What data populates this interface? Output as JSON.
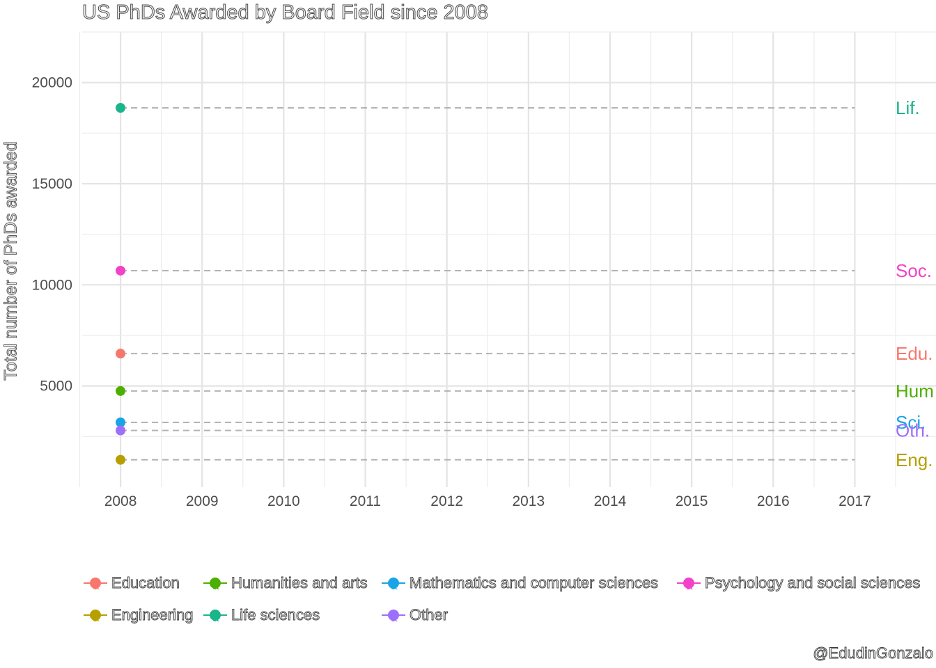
{
  "chart_data": {
    "type": "line",
    "title": "US PhDs Awarded by Board Field since 2008",
    "ylabel": "Total number of PhDs awarded",
    "xlabel": "",
    "x_ticks": [
      2008,
      2009,
      2010,
      2011,
      2012,
      2013,
      2014,
      2015,
      2016,
      2017
    ],
    "y_ticks": [
      5000,
      10000,
      15000,
      20000
    ],
    "xlim": [
      2007.53,
      2017.5
    ],
    "ylim": [
      0,
      22500
    ],
    "grid": true,
    "legend_position": "bottom",
    "caption": "@EdudinGonzalo",
    "series": [
      {
        "name": "Education",
        "short": "Edu.",
        "color": "#F8766D",
        "x": [
          2008
        ],
        "y": [
          6600
        ]
      },
      {
        "name": "Engineering",
        "short": "Eng.",
        "color": "#B79F00",
        "x": [
          2008
        ],
        "y": [
          1350
        ]
      },
      {
        "name": "Humanities and arts",
        "short": "Hum",
        "color": "#4DAF02",
        "x": [
          2008
        ],
        "y": [
          4750
        ]
      },
      {
        "name": "Life sciences",
        "short": "Lif.",
        "color": "#1BB58C",
        "x": [
          2008
        ],
        "y": [
          18750
        ]
      },
      {
        "name": "Mathematics and computer sciences",
        "short": "Sci.",
        "color": "#19A4E6",
        "x": [
          2008
        ],
        "y": [
          3200
        ]
      },
      {
        "name": "Other",
        "short": "Oth.",
        "color": "#9D6FFA",
        "x": [
          2008
        ],
        "y": [
          2800
        ]
      },
      {
        "name": "Psychology and social sciences",
        "short": "Soc.",
        "color": "#F242C8",
        "x": [
          2008
        ],
        "y": [
          10700
        ]
      }
    ]
  }
}
